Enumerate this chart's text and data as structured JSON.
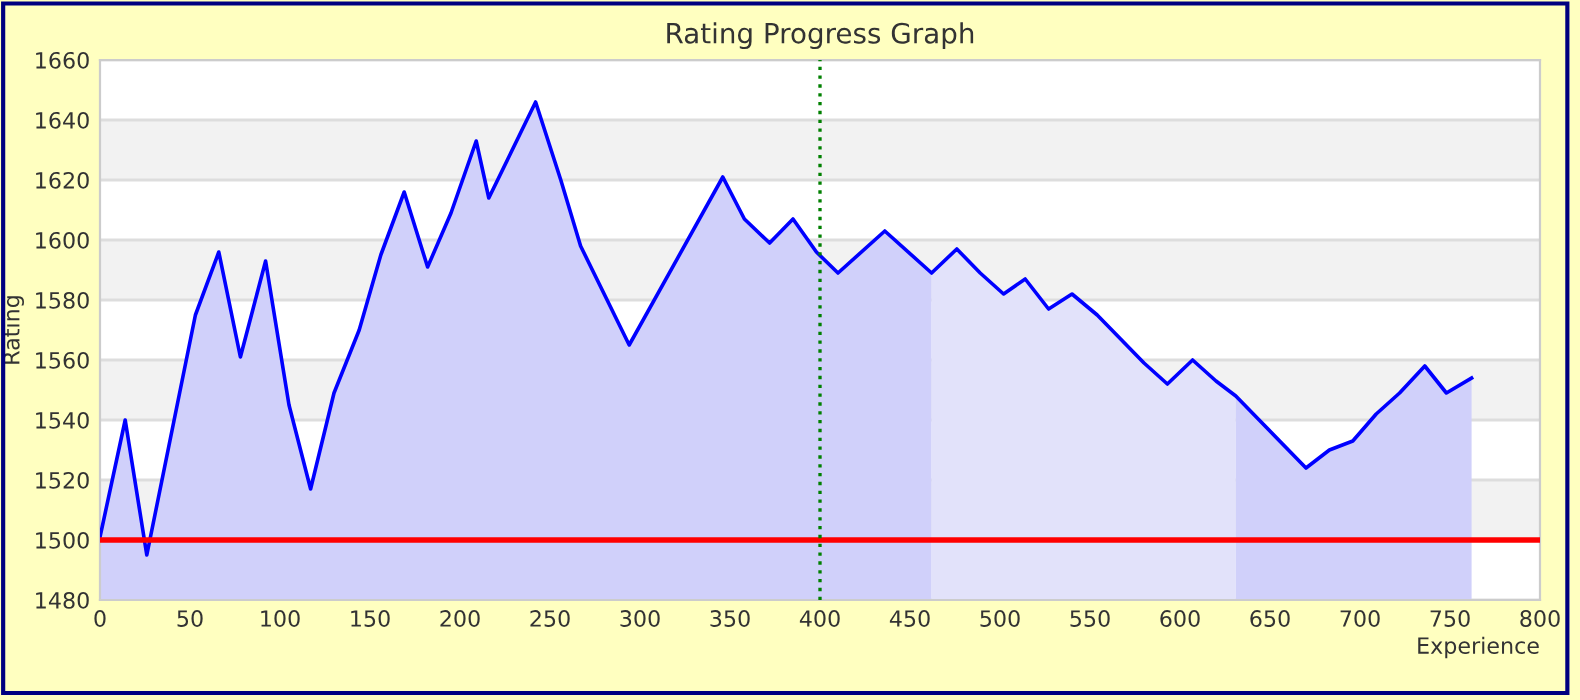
{
  "chart_data": {
    "type": "line",
    "title": "Rating Progress Graph",
    "xlabel": "Experience",
    "ylabel": "Rating",
    "xlim": [
      0,
      800
    ],
    "xticks": [
      0,
      50,
      100,
      150,
      200,
      250,
      300,
      350,
      400,
      450,
      500,
      550,
      600,
      650,
      700,
      750,
      800
    ],
    "ylim": [
      1480,
      1660
    ],
    "yticks": [
      1480,
      1500,
      1520,
      1540,
      1560,
      1580,
      1600,
      1620,
      1640,
      1660
    ],
    "grid": "y",
    "legend": false,
    "marker": "none",
    "line_style": "solid",
    "series": [
      {
        "type": "area",
        "color": "#d0d0fa",
        "x": [
          0,
          14,
          26,
          53,
          66,
          78,
          92,
          105,
          117,
          130,
          144,
          156,
          169,
          182,
          195,
          209,
          216,
          242,
          256,
          267,
          294,
          346,
          358,
          372,
          385,
          398,
          410,
          436,
          462
        ],
        "values": [
          1501,
          1540,
          1495,
          1575,
          1596,
          1561,
          1593,
          1545,
          1517,
          1549,
          1570,
          1595,
          1616,
          1591,
          1609,
          1633,
          1614,
          1646,
          1620,
          1598,
          1565,
          1621,
          1607,
          1599,
          1607,
          1596,
          1589,
          1603,
          1589
        ]
      },
      {
        "type": "area",
        "color": "#e2e2fa",
        "x": [
          462,
          476,
          489,
          502,
          514,
          527,
          540,
          554,
          567,
          580,
          593,
          607,
          620,
          631
        ],
        "values": [
          1589,
          1597,
          1589,
          1582,
          1587,
          1577,
          1582,
          1575,
          1567,
          1559,
          1552,
          1560,
          1553,
          1548
        ]
      },
      {
        "type": "area",
        "color": "#d0d0fa",
        "x": [
          631,
          644,
          670,
          683,
          696,
          709,
          722,
          736,
          748,
          762
        ],
        "values": [
          1548,
          1540,
          1524,
          1530,
          1533,
          1542,
          1549,
          1558,
          1549,
          1554
        ]
      },
      {
        "color": "#0000ff",
        "x": [
          0,
          14,
          26,
          53,
          66,
          78,
          92,
          105,
          117,
          130,
          144,
          156,
          169,
          182,
          195,
          209,
          216,
          242,
          256,
          267,
          294,
          346,
          358,
          372,
          385,
          398,
          410,
          436,
          462,
          476,
          489,
          502,
          514,
          527,
          540,
          554,
          567,
          580,
          593,
          607,
          620,
          631,
          644,
          670,
          683,
          696,
          709,
          722,
          736,
          748,
          762
        ],
        "values": [
          1501,
          1540,
          1495,
          1575,
          1596,
          1561,
          1593,
          1545,
          1517,
          1549,
          1570,
          1595,
          1616,
          1591,
          1609,
          1633,
          1614,
          1646,
          1620,
          1598,
          1565,
          1621,
          1607,
          1599,
          1607,
          1596,
          1589,
          1603,
          1589,
          1597,
          1589,
          1582,
          1587,
          1577,
          1582,
          1575,
          1567,
          1559,
          1552,
          1560,
          1553,
          1548,
          1540,
          1524,
          1530,
          1533,
          1542,
          1549,
          1558,
          1549,
          1554
        ]
      }
    ],
    "ref_lines": [
      {
        "axis": "y",
        "value": 1500,
        "color": "#ff0000",
        "line_style": "solid"
      },
      {
        "axis": "x",
        "value": 400,
        "color": "#008000",
        "line_style": "dotted"
      }
    ],
    "bands": [
      {
        "axis": "y",
        "from": 1500,
        "to": 1520,
        "color": "#f2f2f2"
      },
      {
        "axis": "y",
        "from": 1540,
        "to": 1560,
        "color": "#f2f2f2"
      },
      {
        "axis": "y",
        "from": 1580,
        "to": 1600,
        "color": "#f2f2f2"
      },
      {
        "axis": "y",
        "from": 1620,
        "to": 1640,
        "color": "#f2f2f2"
      }
    ]
  }
}
